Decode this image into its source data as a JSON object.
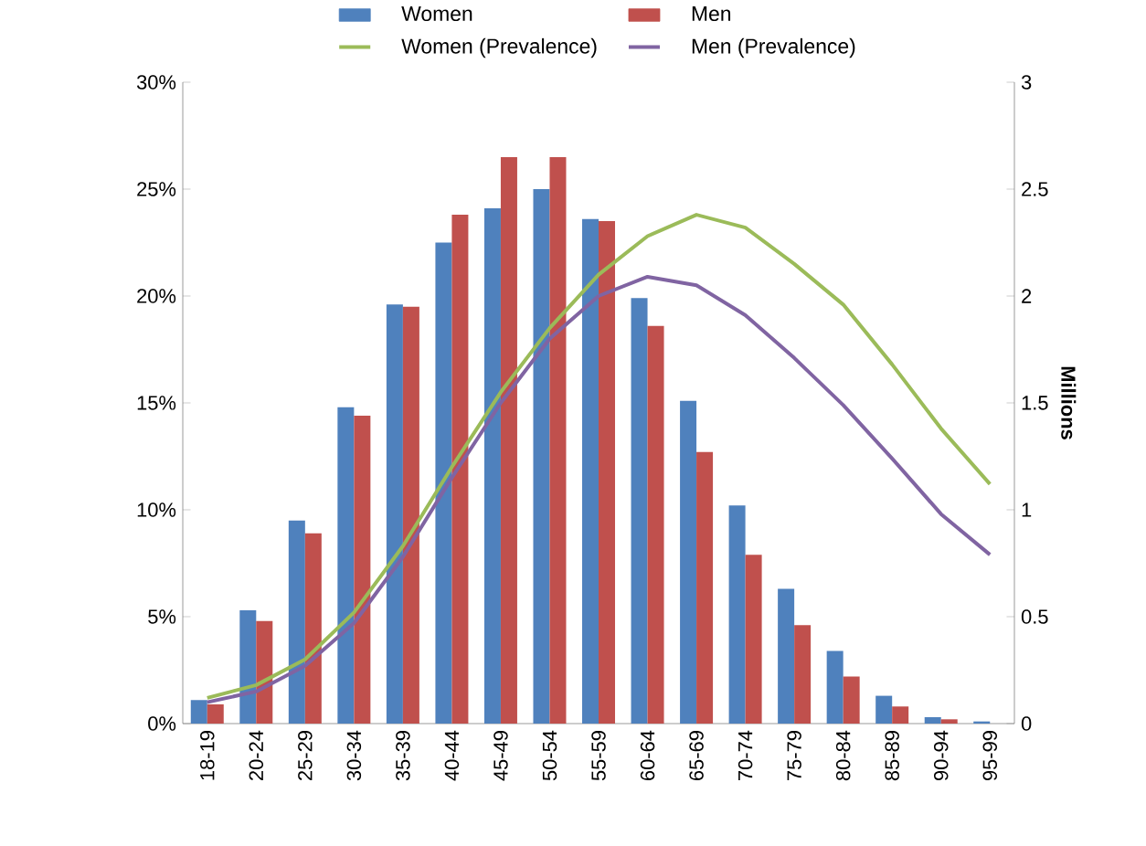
{
  "chart_data": {
    "type": "bar",
    "categories": [
      "18-19",
      "20-24",
      "25-29",
      "30-34",
      "35-39",
      "40-44",
      "45-49",
      "50-54",
      "55-59",
      "60-64",
      "65-69",
      "70-74",
      "75-79",
      "80-84",
      "85-89",
      "90-94",
      "95-99"
    ],
    "series": [
      {
        "name": "Women",
        "axis": "y2",
        "color": "#4f81bd",
        "values": [
          0.11,
          0.53,
          0.95,
          1.48,
          1.96,
          2.25,
          2.41,
          2.5,
          2.36,
          1.99,
          1.51,
          1.02,
          0.63,
          0.34,
          0.13,
          0.03,
          0.01
        ]
      },
      {
        "name": "Men",
        "axis": "y2",
        "color": "#c0504d",
        "values": [
          0.09,
          0.48,
          0.89,
          1.44,
          1.95,
          2.38,
          2.65,
          2.65,
          2.35,
          1.86,
          1.27,
          0.79,
          0.46,
          0.22,
          0.08,
          0.02,
          0
        ]
      },
      {
        "name": "Women (Prevalence)",
        "type": "line",
        "color": "#9bbb59",
        "values": [
          1.2,
          1.8,
          3.0,
          5.2,
          8.3,
          12.0,
          15.5,
          18.5,
          21.0,
          22.8,
          23.8,
          23.2,
          21.5,
          19.6,
          16.8,
          13.8,
          11.2
        ]
      },
      {
        "name": "Men (Prevalence)",
        "type": "line",
        "color": "#8064a2",
        "values": [
          1.0,
          1.5,
          2.7,
          4.7,
          7.8,
          11.5,
          15.0,
          18.0,
          20.0,
          20.9,
          20.5,
          19.1,
          17.1,
          14.9,
          12.4,
          9.8,
          7.9
        ]
      }
    ],
    "ylim": [
      0,
      30
    ],
    "yticks": [
      {
        "value": 0,
        "label": "0%"
      },
      {
        "value": 5,
        "label": "5%"
      },
      {
        "value": 10,
        "label": "10%"
      },
      {
        "value": 15,
        "label": "15%"
      },
      {
        "value": 20,
        "label": "20%"
      },
      {
        "value": 25,
        "label": "25%"
      },
      {
        "value": 30,
        "label": "30%"
      }
    ],
    "y2lim": [
      0,
      3
    ],
    "y2ticks": [
      0,
      0.5,
      1,
      1.5,
      2,
      2.5,
      3
    ],
    "y2label": "Millions",
    "legend": "top"
  }
}
